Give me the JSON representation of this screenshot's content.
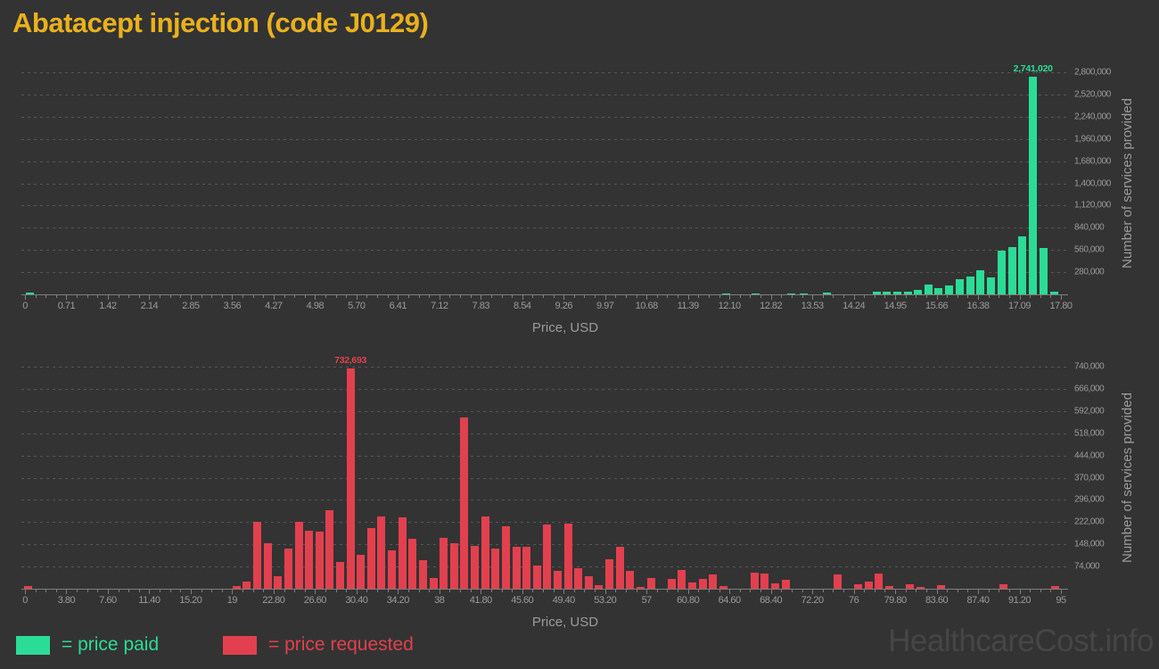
{
  "title": "Abatacept injection (code J0129)",
  "watermark": "HealthcareCost.info",
  "colors": {
    "background": "#333333",
    "title": "#e9b11d",
    "paid": "#2bdc97",
    "requested": "#e2404e",
    "axis_text": "#9b9b9b",
    "gridline": "#575757",
    "axis_line": "#7e7e7e",
    "watermark": "#464646"
  },
  "legend": {
    "paid_label": "= price paid",
    "requested_label": "= price requested"
  },
  "chart_data": [
    {
      "type": "bar",
      "series_name": "price paid",
      "color_key": "paid",
      "xlabel": "Price, USD",
      "ylabel": "Number of services provided",
      "xlim": [
        0,
        17.8
      ],
      "ylim": [
        0,
        2800000
      ],
      "grid": "dashed-horizontal",
      "y_ticks": [
        280000,
        560000,
        840000,
        1120000,
        1400000,
        1680000,
        1960000,
        2240000,
        2520000,
        2800000
      ],
      "x_tick_labels": [
        "0",
        "0.71",
        "1.42",
        "2.14",
        "2.85",
        "3.56",
        "4.27",
        "4.98",
        "5.70",
        "6.41",
        "7.12",
        "7.83",
        "8.54",
        "9.26",
        "9.97",
        "10.68",
        "11.39",
        "12.10",
        "12.82",
        "13.53",
        "14.24",
        "14.95",
        "15.66",
        "16.38",
        "17.09",
        "17.80"
      ],
      "n_bins": 100,
      "peak_annotation": "2,741,020",
      "bars": [
        [
          0.09,
          20000
        ],
        [
          12.05,
          8000
        ],
        [
          12.55,
          8000
        ],
        [
          13.17,
          10000
        ],
        [
          13.38,
          12000
        ],
        [
          13.78,
          26000
        ],
        [
          14.63,
          30000
        ],
        [
          14.81,
          33000
        ],
        [
          14.99,
          30000
        ],
        [
          15.17,
          37000
        ],
        [
          15.34,
          52000
        ],
        [
          15.52,
          120000
        ],
        [
          15.7,
          78000
        ],
        [
          15.88,
          118000
        ],
        [
          16.06,
          190000
        ],
        [
          16.24,
          220000
        ],
        [
          16.42,
          305000
        ],
        [
          16.6,
          213000
        ],
        [
          16.78,
          555000
        ],
        [
          16.96,
          592000
        ],
        [
          17.14,
          735000
        ],
        [
          17.32,
          2741020
        ],
        [
          17.5,
          581000
        ],
        [
          17.68,
          29000
        ]
      ]
    },
    {
      "type": "bar",
      "series_name": "price requested",
      "color_key": "requested",
      "xlabel": "Price, USD",
      "ylabel": "Number of services provided",
      "xlim": [
        0,
        95
      ],
      "ylim": [
        0,
        740000
      ],
      "grid": "dashed-horizontal",
      "y_ticks": [
        74000,
        148000,
        222000,
        296000,
        370000,
        444000,
        518000,
        592000,
        666000,
        740000
      ],
      "x_tick_labels": [
        "0",
        "3.80",
        "7.60",
        "11.40",
        "15.20",
        "19",
        "22.80",
        "26.60",
        "30.40",
        "34.20",
        "38",
        "41.80",
        "45.60",
        "49.40",
        "53.20",
        "57",
        "60.80",
        "64.60",
        "68.40",
        "72.20",
        "76",
        "79.80",
        "83.60",
        "87.40",
        "91.20",
        "95"
      ],
      "n_bins": 100,
      "peak_annotation": "732,693",
      "bars": [
        [
          0.3,
          8000
        ],
        [
          19.4,
          10000
        ],
        [
          20.35,
          25000
        ],
        [
          21.3,
          222000
        ],
        [
          22.25,
          153000
        ],
        [
          23.2,
          41000
        ],
        [
          24.15,
          133000
        ],
        [
          25.1,
          222000
        ],
        [
          26.05,
          192000
        ],
        [
          27.0,
          190000
        ],
        [
          27.95,
          262000
        ],
        [
          28.9,
          89000
        ],
        [
          29.85,
          732693
        ],
        [
          30.8,
          113000
        ],
        [
          31.75,
          202000
        ],
        [
          32.7,
          242000
        ],
        [
          33.65,
          128000
        ],
        [
          34.6,
          237000
        ],
        [
          35.55,
          166000
        ],
        [
          36.5,
          94000
        ],
        [
          37.45,
          37000
        ],
        [
          38.4,
          168000
        ],
        [
          39.35,
          153000
        ],
        [
          40.3,
          572000
        ],
        [
          41.25,
          143000
        ],
        [
          42.2,
          242000
        ],
        [
          43.15,
          133000
        ],
        [
          44.1,
          208000
        ],
        [
          45.05,
          139000
        ],
        [
          46.0,
          139000
        ],
        [
          46.95,
          77000
        ],
        [
          47.9,
          213000
        ],
        [
          48.85,
          59000
        ],
        [
          49.8,
          216000
        ],
        [
          50.75,
          69000
        ],
        [
          51.7,
          42000
        ],
        [
          52.65,
          12000
        ],
        [
          53.6,
          99000
        ],
        [
          54.55,
          139000
        ],
        [
          55.5,
          59000
        ],
        [
          56.45,
          5000
        ],
        [
          57.4,
          35000
        ],
        [
          59.3,
          32000
        ],
        [
          60.25,
          61000
        ],
        [
          61.2,
          20000
        ],
        [
          62.15,
          32000
        ],
        [
          63.1,
          48000
        ],
        [
          64.05,
          10000
        ],
        [
          66.9,
          54000
        ],
        [
          67.85,
          50000
        ],
        [
          68.8,
          18000
        ],
        [
          69.75,
          30000
        ],
        [
          74.5,
          47000
        ],
        [
          76.4,
          15000
        ],
        [
          77.35,
          25000
        ],
        [
          78.3,
          51000
        ],
        [
          79.25,
          8000
        ],
        [
          81.15,
          15000
        ],
        [
          82.1,
          5000
        ],
        [
          84.0,
          12000
        ],
        [
          89.7,
          15000
        ],
        [
          94.45,
          10000
        ]
      ]
    }
  ]
}
